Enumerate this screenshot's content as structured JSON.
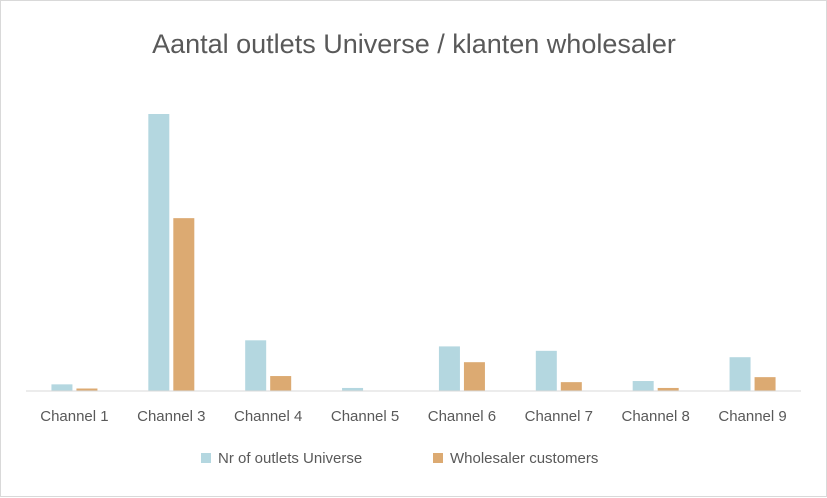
{
  "chart_data": {
    "type": "bar",
    "title": "Aantal outlets Universe / klanten wholesaler",
    "xlabel": "",
    "ylabel": "",
    "categories": [
      "Channel 1",
      "Channel 3",
      "Channel 4",
      "Channel 5",
      "Channel 6",
      "Channel 7",
      "Channel 8",
      "Channel 9"
    ],
    "series": [
      {
        "name": "Nr of outlets Universe",
        "color": "#b4d7e0",
        "values": [
          2.4,
          100,
          18.3,
          1.1,
          16.1,
          14.5,
          3.6,
          12.2
        ]
      },
      {
        "name": "Wholesaler customers",
        "color": "#dcaa72",
        "values": [
          0.9,
          62.4,
          5.4,
          0,
          10.4,
          3.2,
          1.1,
          5.0
        ]
      }
    ],
    "ylim": [
      0,
      110
    ],
    "grid": false,
    "legend": "bottom"
  }
}
